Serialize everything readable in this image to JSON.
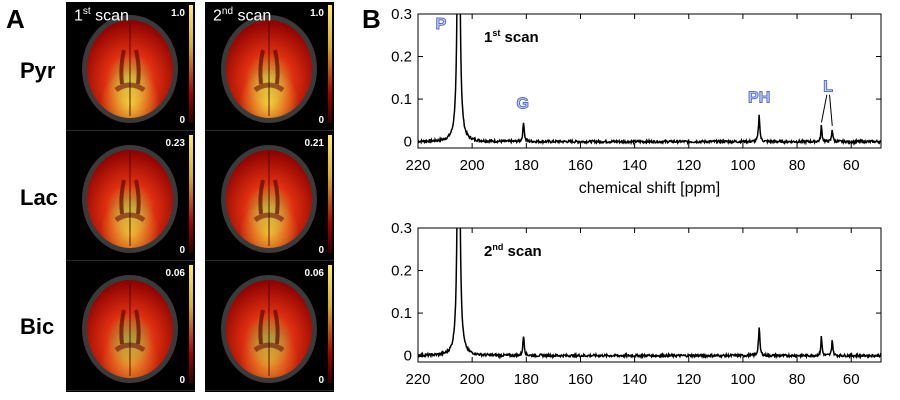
{
  "panel_a": {
    "letter": "A",
    "columns": [
      {
        "title_num": "1",
        "title_sup": "st",
        "title_rest": " scan"
      },
      {
        "title_num": "2",
        "title_sup": "nd",
        "title_rest": " scan"
      }
    ],
    "rows": [
      {
        "label": "Pyr",
        "max": [
          "1.0",
          "1.0"
        ],
        "min": [
          "0",
          "0"
        ],
        "intensity": 1.0
      },
      {
        "label": "Lac",
        "max": [
          "0.23",
          "0.21"
        ],
        "min": [
          "0",
          "0"
        ],
        "intensity": 0.85
      },
      {
        "label": "Bic",
        "max": [
          "0.06",
          "0.06"
        ],
        "min": [
          "0",
          "0"
        ],
        "intensity": 0.6
      }
    ],
    "colors": {
      "background": "#000000",
      "hot_low": "#8b0000",
      "hot_mid": "#e03010",
      "hot_high": "#f0e040"
    }
  },
  "panel_b": {
    "letter": "B"
  },
  "chart_data": [
    {
      "type": "line",
      "title_num": "1",
      "title_sup": "st",
      "title_rest": " scan",
      "xlabel": "chemical shift [ppm]",
      "ylabel": "",
      "xlim": [
        220,
        49
      ],
      "ylim": [
        -0.015,
        0.3
      ],
      "x_ticks": [
        220,
        200,
        180,
        160,
        140,
        120,
        100,
        80,
        60
      ],
      "y_ticks": [
        0,
        0.1,
        0.2,
        0.3
      ],
      "x_tick_labels": [
        "220",
        "200",
        "180",
        "160",
        "140",
        "120",
        "100",
        "80",
        "60"
      ],
      "y_tick_labels": [
        "0",
        "0.1",
        "0.2",
        "0.3"
      ],
      "baseline": 0.0,
      "noise": 0.003,
      "peaks": [
        {
          "ppm": 205.0,
          "height": 0.9,
          "width": 0.45
        },
        {
          "ppm": 181.0,
          "height": 0.045,
          "width": 0.3
        },
        {
          "ppm": 94.0,
          "height": 0.062,
          "width": 0.3
        },
        {
          "ppm": 71.0,
          "height": 0.038,
          "width": 0.25
        },
        {
          "ppm": 67.0,
          "height": 0.03,
          "width": 0.25
        }
      ],
      "annotations": [
        {
          "text": "P",
          "ppm": 211.5,
          "y": 0.265
        },
        {
          "text": "G",
          "ppm": 181.3,
          "y": 0.078
        },
        {
          "text": "PH",
          "ppm": 94.0,
          "y": 0.092
        },
        {
          "text": "L",
          "ppm": 68.5,
          "y": 0.118
        }
      ],
      "leader_lines": [
        {
          "from_ppm": 69.0,
          "from_y": 0.11,
          "to_ppm": 71.0,
          "to_y": 0.045
        },
        {
          "from_ppm": 68.0,
          "from_y": 0.11,
          "to_ppm": 67.0,
          "to_y": 0.037
        }
      ]
    },
    {
      "type": "line",
      "title_num": "2",
      "title_sup": "nd",
      "title_rest": " scan",
      "xlabel": "",
      "ylabel": "",
      "xlim": [
        220,
        49
      ],
      "ylim": [
        -0.015,
        0.3
      ],
      "x_ticks": [
        220,
        200,
        180,
        160,
        140,
        120,
        100,
        80,
        60
      ],
      "y_ticks": [
        0,
        0.1,
        0.2,
        0.3
      ],
      "x_tick_labels": [
        "220",
        "200",
        "180",
        "160",
        "140",
        "120",
        "100",
        "80",
        "60"
      ],
      "y_tick_labels": [
        "0",
        "0.1",
        "0.2",
        "0.3"
      ],
      "baseline": 0.0,
      "noise": 0.003,
      "peaks": [
        {
          "ppm": 205.0,
          "height": 0.9,
          "width": 0.45
        },
        {
          "ppm": 181.0,
          "height": 0.046,
          "width": 0.3
        },
        {
          "ppm": 94.0,
          "height": 0.066,
          "width": 0.3
        },
        {
          "ppm": 71.0,
          "height": 0.045,
          "width": 0.25
        },
        {
          "ppm": 67.0,
          "height": 0.038,
          "width": 0.25
        }
      ],
      "annotations": [],
      "leader_lines": []
    }
  ]
}
